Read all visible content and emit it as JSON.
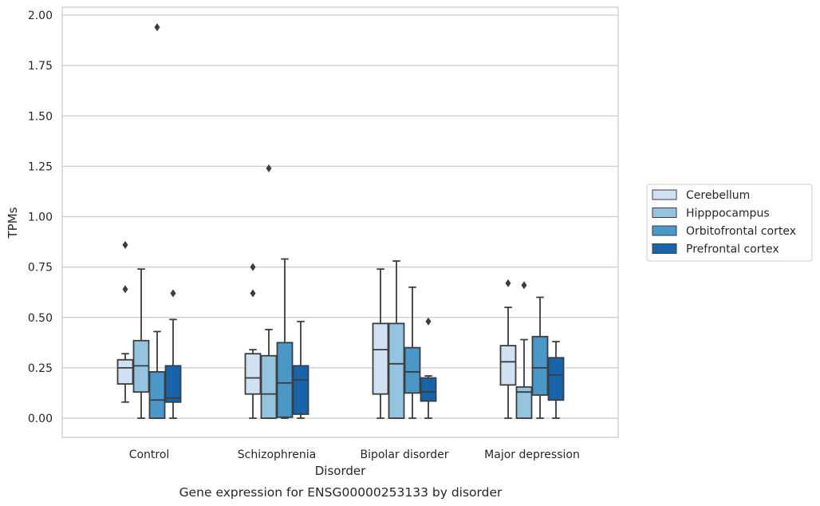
{
  "chart_data": {
    "type": "box",
    "caption": "Gene expression for ENSG00000253133 by disorder",
    "xlabel": "Disorder",
    "ylabel": "TPMs",
    "ylim": [
      -0.1,
      2.04
    ],
    "yticks": [
      "0.00",
      "0.25",
      "0.50",
      "0.75",
      "1.00",
      "1.25",
      "1.50",
      "1.75",
      "2.00"
    ],
    "grid": "horizontal",
    "legend_position": "right",
    "categories": [
      "Control",
      "Schizophrenia",
      "Bipolar disorder",
      "Major depression"
    ],
    "series": [
      {
        "name": "Cerebellum",
        "color": "#d0e1f2",
        "boxes": [
          {
            "whislo": 0.08,
            "q1": 0.17,
            "med": 0.25,
            "q3": 0.29,
            "whishi": 0.32,
            "fliers": [
              0.64,
              0.86
            ]
          },
          {
            "whislo": 0.0,
            "q1": 0.12,
            "med": 0.2,
            "q3": 0.32,
            "whishi": 0.34,
            "fliers": [
              0.62,
              0.75
            ]
          },
          {
            "whislo": 0.0,
            "q1": 0.12,
            "med": 0.34,
            "q3": 0.47,
            "whishi": 0.74,
            "fliers": []
          },
          {
            "whislo": 0.0,
            "q1": 0.165,
            "med": 0.28,
            "q3": 0.36,
            "whishi": 0.55,
            "fliers": [
              0.67
            ]
          }
        ]
      },
      {
        "name": "Hipppocampus",
        "color": "#94c4df",
        "boxes": [
          {
            "whislo": 0.0,
            "q1": 0.13,
            "med": 0.26,
            "q3": 0.385,
            "whishi": 0.74,
            "fliers": []
          },
          {
            "whislo": 0.0,
            "q1": 0.0,
            "med": 0.12,
            "q3": 0.31,
            "whishi": 0.44,
            "fliers": [
              1.24
            ]
          },
          {
            "whislo": 0.0,
            "q1": 0.0,
            "med": 0.27,
            "q3": 0.47,
            "whishi": 0.78,
            "fliers": []
          },
          {
            "whislo": 0.0,
            "q1": 0.0,
            "med": 0.13,
            "q3": 0.155,
            "whishi": 0.39,
            "fliers": [
              0.66
            ]
          }
        ]
      },
      {
        "name": "Orbitofrontal cortex",
        "color": "#4a98c9",
        "boxes": [
          {
            "whislo": 0.0,
            "q1": 0.0,
            "med": 0.09,
            "q3": 0.23,
            "whishi": 0.43,
            "fliers": [
              1.94
            ]
          },
          {
            "whislo": 0.0,
            "q1": 0.005,
            "med": 0.175,
            "q3": 0.375,
            "whishi": 0.79,
            "fliers": []
          },
          {
            "whislo": 0.0,
            "q1": 0.125,
            "med": 0.23,
            "q3": 0.35,
            "whishi": 0.65,
            "fliers": []
          },
          {
            "whislo": 0.0,
            "q1": 0.115,
            "med": 0.25,
            "q3": 0.405,
            "whishi": 0.6,
            "fliers": []
          }
        ]
      },
      {
        "name": "Prefrontal cortex",
        "color": "#1764ab",
        "boxes": [
          {
            "whislo": 0.0,
            "q1": 0.08,
            "med": 0.1,
            "q3": 0.26,
            "whishi": 0.49,
            "fliers": [
              0.62
            ]
          },
          {
            "whislo": 0.0,
            "q1": 0.02,
            "med": 0.19,
            "q3": 0.26,
            "whishi": 0.48,
            "fliers": []
          },
          {
            "whislo": 0.0,
            "q1": 0.085,
            "med": 0.13,
            "q3": 0.2,
            "whishi": 0.21,
            "fliers": [
              0.48
            ]
          },
          {
            "whislo": 0.0,
            "q1": 0.09,
            "med": 0.215,
            "q3": 0.3,
            "whishi": 0.38,
            "fliers": []
          }
        ]
      }
    ]
  }
}
